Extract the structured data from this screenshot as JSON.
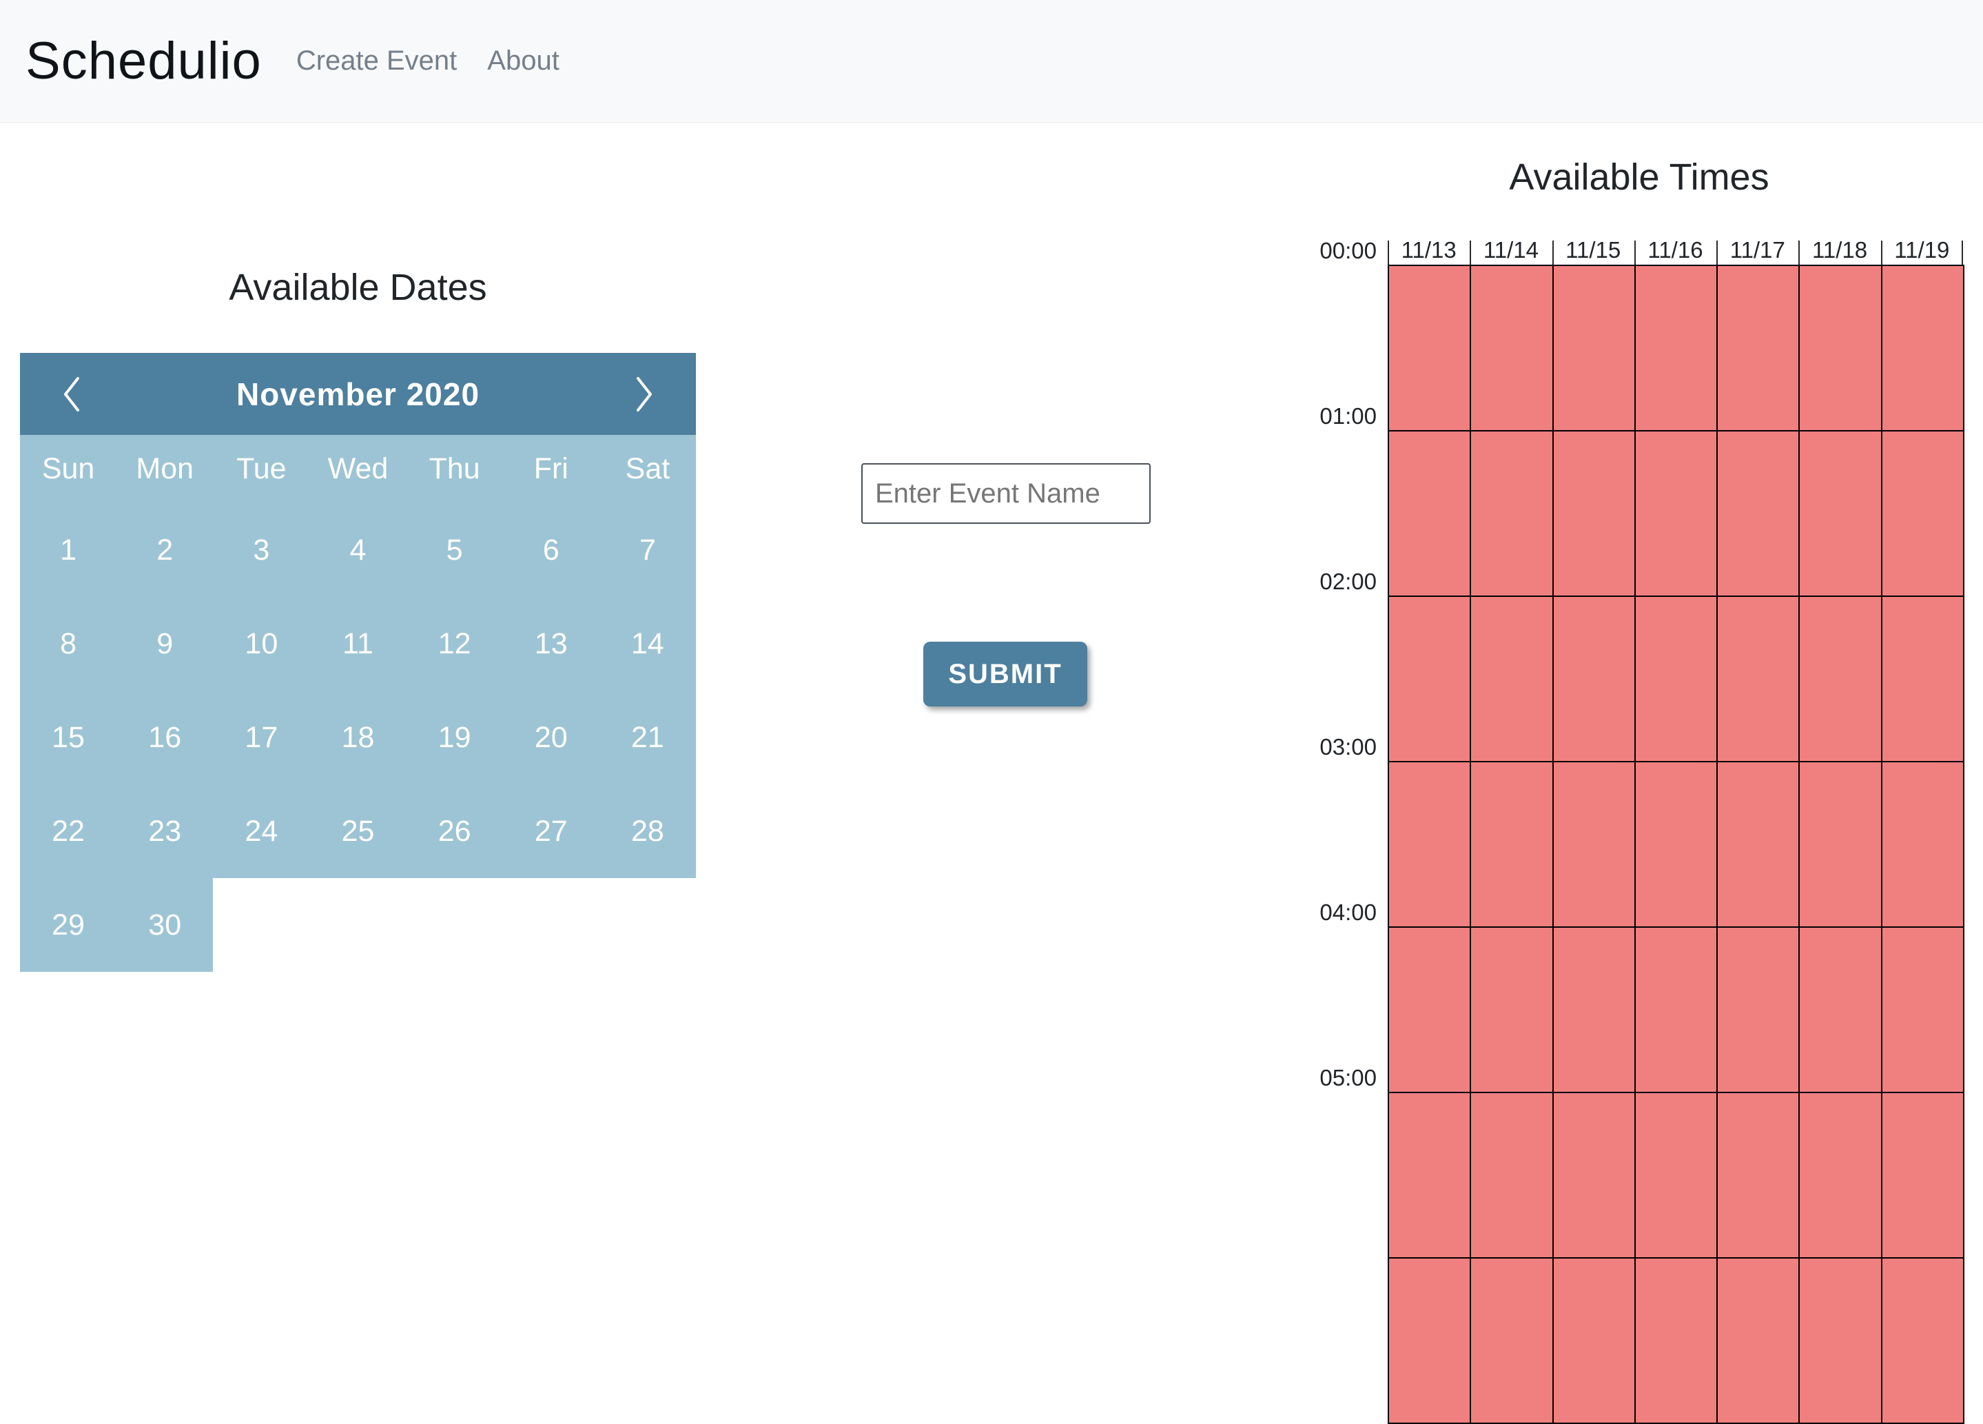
{
  "navbar": {
    "brand": "Schedulio",
    "links": [
      {
        "id": "create-event",
        "label": "Create Event"
      },
      {
        "id": "about",
        "label": "About"
      }
    ]
  },
  "dates_panel": {
    "title": "Available Dates",
    "calendar": {
      "month_label": "November 2020",
      "prev_icon": "chevron-left-icon",
      "next_icon": "chevron-right-icon",
      "weekdays": [
        "Sun",
        "Mon",
        "Tue",
        "Wed",
        "Thu",
        "Fri",
        "Sat"
      ],
      "weeks": [
        [
          "1",
          "2",
          "3",
          "4",
          "5",
          "6",
          "7"
        ],
        [
          "8",
          "9",
          "10",
          "11",
          "12",
          "13",
          "14"
        ],
        [
          "15",
          "16",
          "17",
          "18",
          "19",
          "20",
          "21"
        ],
        [
          "22",
          "23",
          "24",
          "25",
          "26",
          "27",
          "28"
        ],
        [
          "29",
          "30",
          "",
          "",
          "",
          "",
          ""
        ]
      ]
    }
  },
  "event_form": {
    "name_placeholder": "Enter Event Name",
    "submit_label": "SUBMIT"
  },
  "times_panel": {
    "title": "Available Times",
    "date_columns": [
      "11/13",
      "11/14",
      "11/15",
      "11/16",
      "11/17",
      "11/18",
      "11/19"
    ],
    "time_rows": [
      "00:00",
      "01:00",
      "02:00",
      "03:00",
      "04:00",
      "05:00"
    ]
  },
  "colors": {
    "accent_teal": "#4d7f9e",
    "calendar_light_blue": "#9dc4d4",
    "timeslot_salmon": "#f08080",
    "navbar_bg": "#f8f9fa"
  }
}
